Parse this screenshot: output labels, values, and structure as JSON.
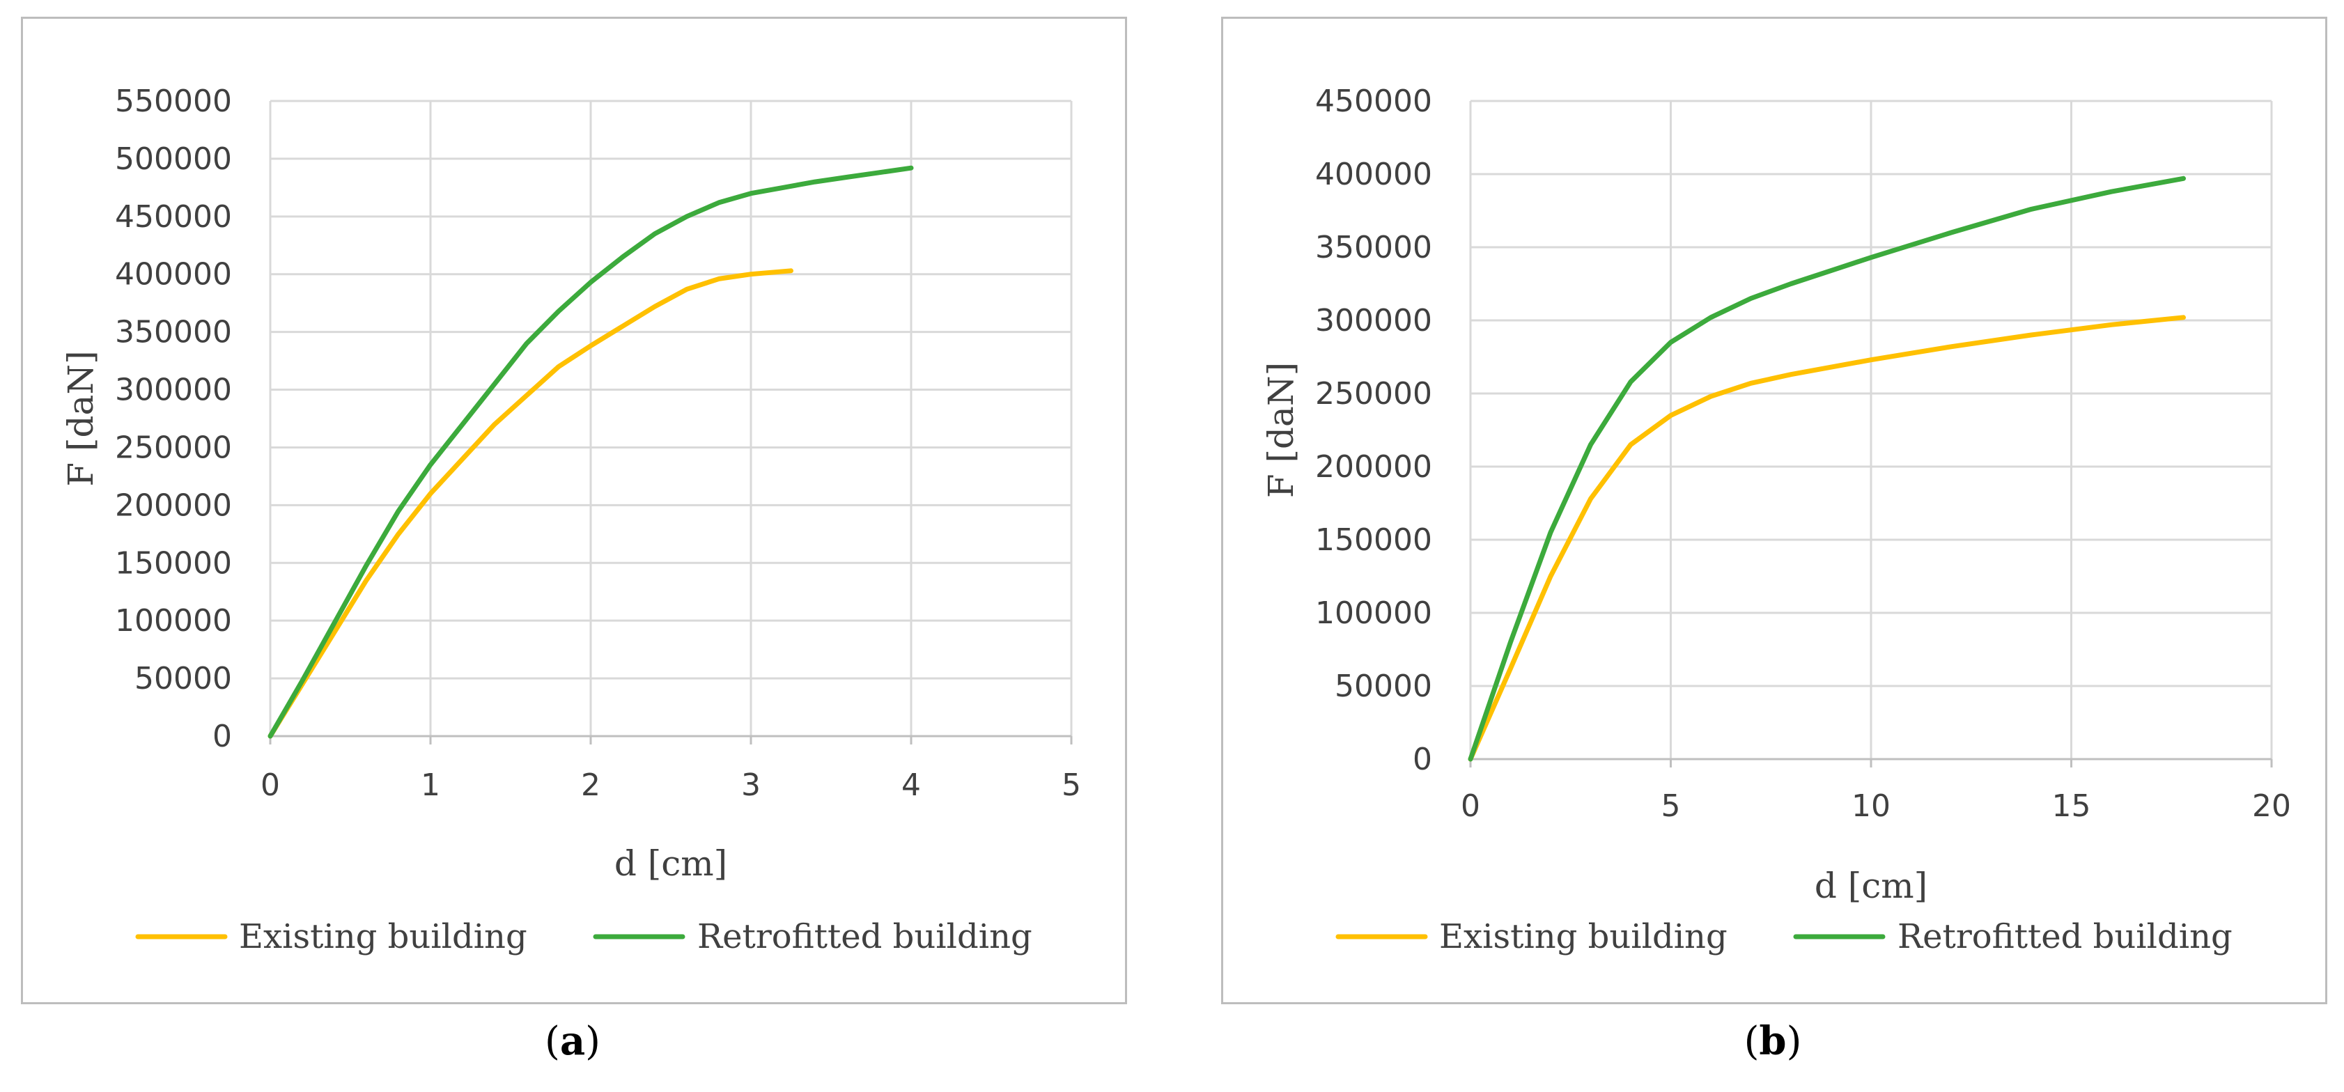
{
  "colors": {
    "existing": "#FFC000",
    "retrofitted": "#3CAA3C",
    "grid": "#d9d9d9",
    "axis": "#bfbfbf"
  },
  "captions": {
    "a_open": "(",
    "a_letter": "a",
    "a_close": ")",
    "b_open": "(",
    "b_letter": "b",
    "b_close": ")"
  },
  "chart_data": [
    {
      "type": "line",
      "panel": "a",
      "xlabel": "d [cm]",
      "ylabel": "F [daN]",
      "xlim": [
        0,
        5
      ],
      "ylim": [
        0,
        550000
      ],
      "xticks": [
        0,
        1,
        2,
        3,
        4,
        5
      ],
      "yticks": [
        0,
        50000,
        100000,
        150000,
        200000,
        250000,
        300000,
        350000,
        400000,
        450000,
        500000,
        550000
      ],
      "grid": true,
      "legend_position": "bottom",
      "series": [
        {
          "name": "Existing building",
          "color_key": "existing",
          "x": [
            0,
            0.2,
            0.4,
            0.6,
            0.8,
            1.0,
            1.2,
            1.4,
            1.6,
            1.8,
            2.0,
            2.2,
            2.4,
            2.6,
            2.8,
            3.0,
            3.25
          ],
          "y": [
            0,
            45000,
            90000,
            135000,
            175000,
            210000,
            240000,
            270000,
            295000,
            320000,
            338000,
            355000,
            372000,
            387000,
            396000,
            400000,
            403000
          ]
        },
        {
          "name": "Retrofitted building",
          "color_key": "retrofitted",
          "x": [
            0,
            0.2,
            0.4,
            0.6,
            0.8,
            1.0,
            1.2,
            1.4,
            1.6,
            1.8,
            2.0,
            2.2,
            2.4,
            2.6,
            2.8,
            3.0,
            3.2,
            3.4,
            3.6,
            3.8,
            4.0
          ],
          "y": [
            0,
            48000,
            98000,
            148000,
            195000,
            235000,
            270000,
            305000,
            340000,
            368000,
            393000,
            415000,
            435000,
            450000,
            462000,
            470000,
            475000,
            480000,
            484000,
            488000,
            492000
          ]
        }
      ]
    },
    {
      "type": "line",
      "panel": "b",
      "xlabel": "d [cm]",
      "ylabel": "F [daN]",
      "xlim": [
        0,
        20
      ],
      "ylim": [
        0,
        450000
      ],
      "xticks": [
        0,
        5,
        10,
        15,
        20
      ],
      "yticks": [
        0,
        50000,
        100000,
        150000,
        200000,
        250000,
        300000,
        350000,
        400000,
        450000
      ],
      "grid": true,
      "legend_position": "bottom",
      "series": [
        {
          "name": "Existing building",
          "color_key": "existing",
          "x": [
            0,
            1,
            2,
            3,
            4,
            5,
            6,
            7,
            8,
            10,
            12,
            14,
            16,
            17.8
          ],
          "y": [
            0,
            62000,
            125000,
            178000,
            215000,
            235000,
            248000,
            257000,
            263000,
            273000,
            282000,
            290000,
            297000,
            302000
          ]
        },
        {
          "name": "Retrofitted building",
          "color_key": "retrofitted",
          "x": [
            0,
            1,
            2,
            3,
            4,
            5,
            6,
            7,
            8,
            10,
            12,
            14,
            16,
            17.8
          ],
          "y": [
            0,
            80000,
            155000,
            215000,
            258000,
            285000,
            302000,
            315000,
            325000,
            343000,
            360000,
            376000,
            388000,
            397000
          ]
        }
      ]
    }
  ]
}
